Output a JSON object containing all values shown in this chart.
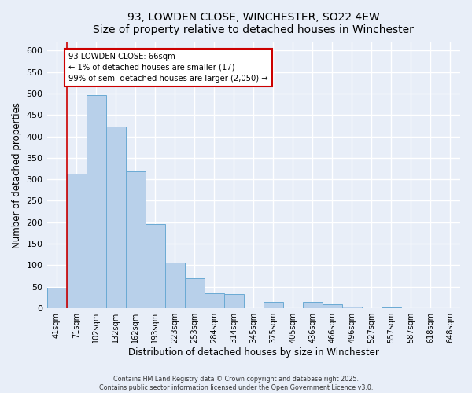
{
  "title": "93, LOWDEN CLOSE, WINCHESTER, SO22 4EW",
  "subtitle": "Size of property relative to detached houses in Winchester",
  "xlabel": "Distribution of detached houses by size in Winchester",
  "ylabel": "Number of detached properties",
  "bar_labels": [
    "41sqm",
    "71sqm",
    "102sqm",
    "132sqm",
    "162sqm",
    "193sqm",
    "223sqm",
    "253sqm",
    "284sqm",
    "314sqm",
    "345sqm",
    "375sqm",
    "405sqm",
    "436sqm",
    "466sqm",
    "496sqm",
    "527sqm",
    "557sqm",
    "587sqm",
    "618sqm",
    "648sqm"
  ],
  "bar_values": [
    47,
    314,
    497,
    423,
    319,
    196,
    106,
    69,
    35,
    33,
    0,
    14,
    0,
    14,
    9,
    4,
    0,
    2,
    0,
    0,
    0
  ],
  "bar_color": "#b8d0ea",
  "bar_edge_color": "#6aaad4",
  "ylim": [
    0,
    620
  ],
  "yticks": [
    0,
    50,
    100,
    150,
    200,
    250,
    300,
    350,
    400,
    450,
    500,
    550,
    600
  ],
  "marker_line_color": "#cc0000",
  "annotation_text": "93 LOWDEN CLOSE: 66sqm\n← 1% of detached houses are smaller (17)\n99% of semi-detached houses are larger (2,050) →",
  "annotation_box_color": "#ffffff",
  "annotation_box_edge_color": "#cc0000",
  "footer_line1": "Contains HM Land Registry data © Crown copyright and database right 2025.",
  "footer_line2": "Contains public sector information licensed under the Open Government Licence v3.0.",
  "background_color": "#e8eef8",
  "plot_bg_color": "#e8eef8",
  "grid_color": "#ffffff"
}
